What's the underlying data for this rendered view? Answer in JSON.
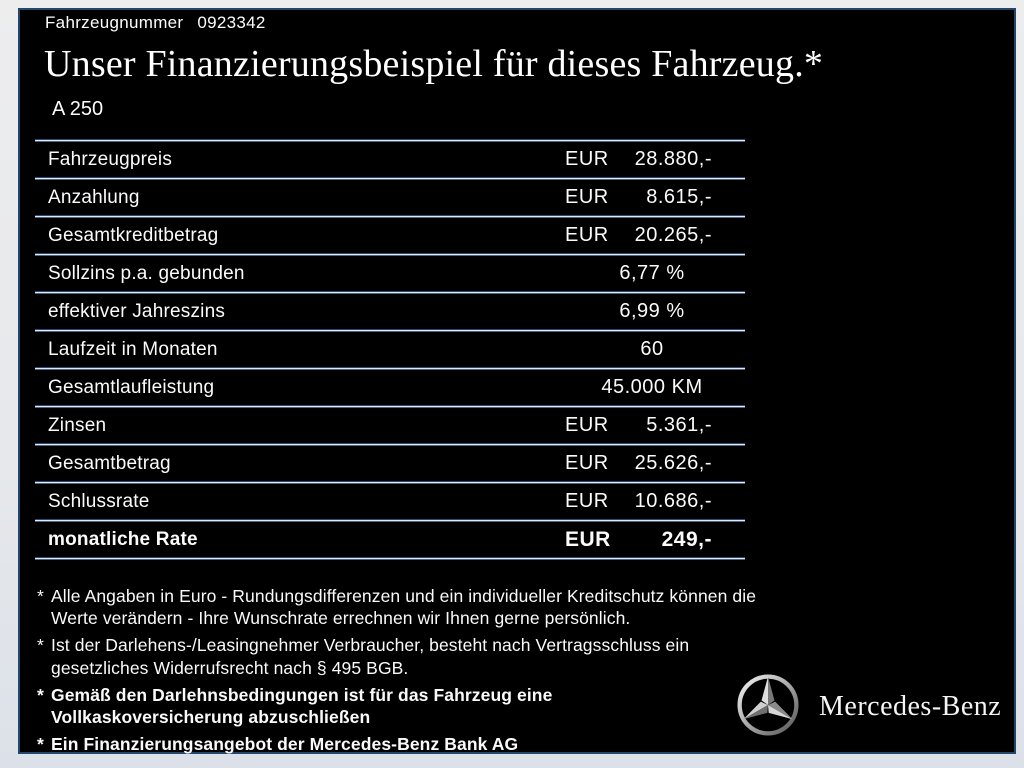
{
  "header": {
    "vehicle_number_label": "Fahrzeugnummer",
    "vehicle_number": "0923342",
    "title": "Unser Finanzierungsbeispiel für dieses Fahrzeug.*",
    "model": "A 250"
  },
  "table": {
    "rows": [
      {
        "label": "Fahrzeugpreis",
        "currency": "EUR",
        "value": "28.880,-",
        "align": "right",
        "bold": false
      },
      {
        "label": "Anzahlung",
        "currency": "EUR",
        "value": "8.615,-",
        "align": "right",
        "bold": false
      },
      {
        "label": "Gesamtkreditbetrag",
        "currency": "EUR",
        "value": "20.265,-",
        "align": "right",
        "bold": false
      },
      {
        "label": "Sollzins p.a. gebunden",
        "currency": "",
        "value": "6,77 %",
        "align": "center",
        "bold": false
      },
      {
        "label": "effektiver Jahreszins",
        "currency": "",
        "value": "6,99 %",
        "align": "center",
        "bold": false
      },
      {
        "label": "Laufzeit in Monaten",
        "currency": "",
        "value": "60",
        "align": "center",
        "bold": false
      },
      {
        "label": "Gesamtlaufleistung",
        "currency": "",
        "value": "45.000 KM",
        "align": "center",
        "bold": false
      },
      {
        "label": "Zinsen",
        "currency": "EUR",
        "value": "5.361,-",
        "align": "right",
        "bold": false
      },
      {
        "label": "Gesamtbetrag",
        "currency": "EUR",
        "value": "25.626,-",
        "align": "right",
        "bold": false
      },
      {
        "label": "Schlussrate",
        "currency": "EUR",
        "value": "10.686,-",
        "align": "right",
        "bold": false
      },
      {
        "label": "monatliche Rate",
        "currency": "EUR",
        "value": "249,-",
        "align": "right",
        "bold": true
      }
    ]
  },
  "footnotes": [
    {
      "marker": "*",
      "bold": false,
      "text": "Alle Angaben in Euro - Rundungsdifferenzen und ein individueller Kreditschutz können die\nWerte verändern - Ihre Wunschrate errechnen wir Ihnen gerne persönlich."
    },
    {
      "marker": "*",
      "bold": false,
      "text": "Ist der Darlehens-/Leasingnehmer Verbraucher, besteht nach Vertragsschluss ein\ngesetzliches Widerrufsrecht nach § 495 BGB."
    },
    {
      "marker": "*",
      "bold": true,
      "text": "Gemäß den Darlehnsbedingungen ist für das Fahrzeug eine\nVollkaskoversicherung abzuschließen"
    },
    {
      "marker": "*",
      "bold": true,
      "text": "Ein Finanzierungsangebot der Mercedes-Benz Bank AG"
    }
  ],
  "brand": {
    "name": "Mercedes-Benz",
    "logo": "mercedes-star-icon"
  },
  "colors": {
    "panel_background": "#000000",
    "frame_background": "#e6e8eb",
    "panel_border": "#24466b",
    "divider_light": "#e2e9f1",
    "divider_dark": "#2c4b6f",
    "text": "#ffffff"
  }
}
